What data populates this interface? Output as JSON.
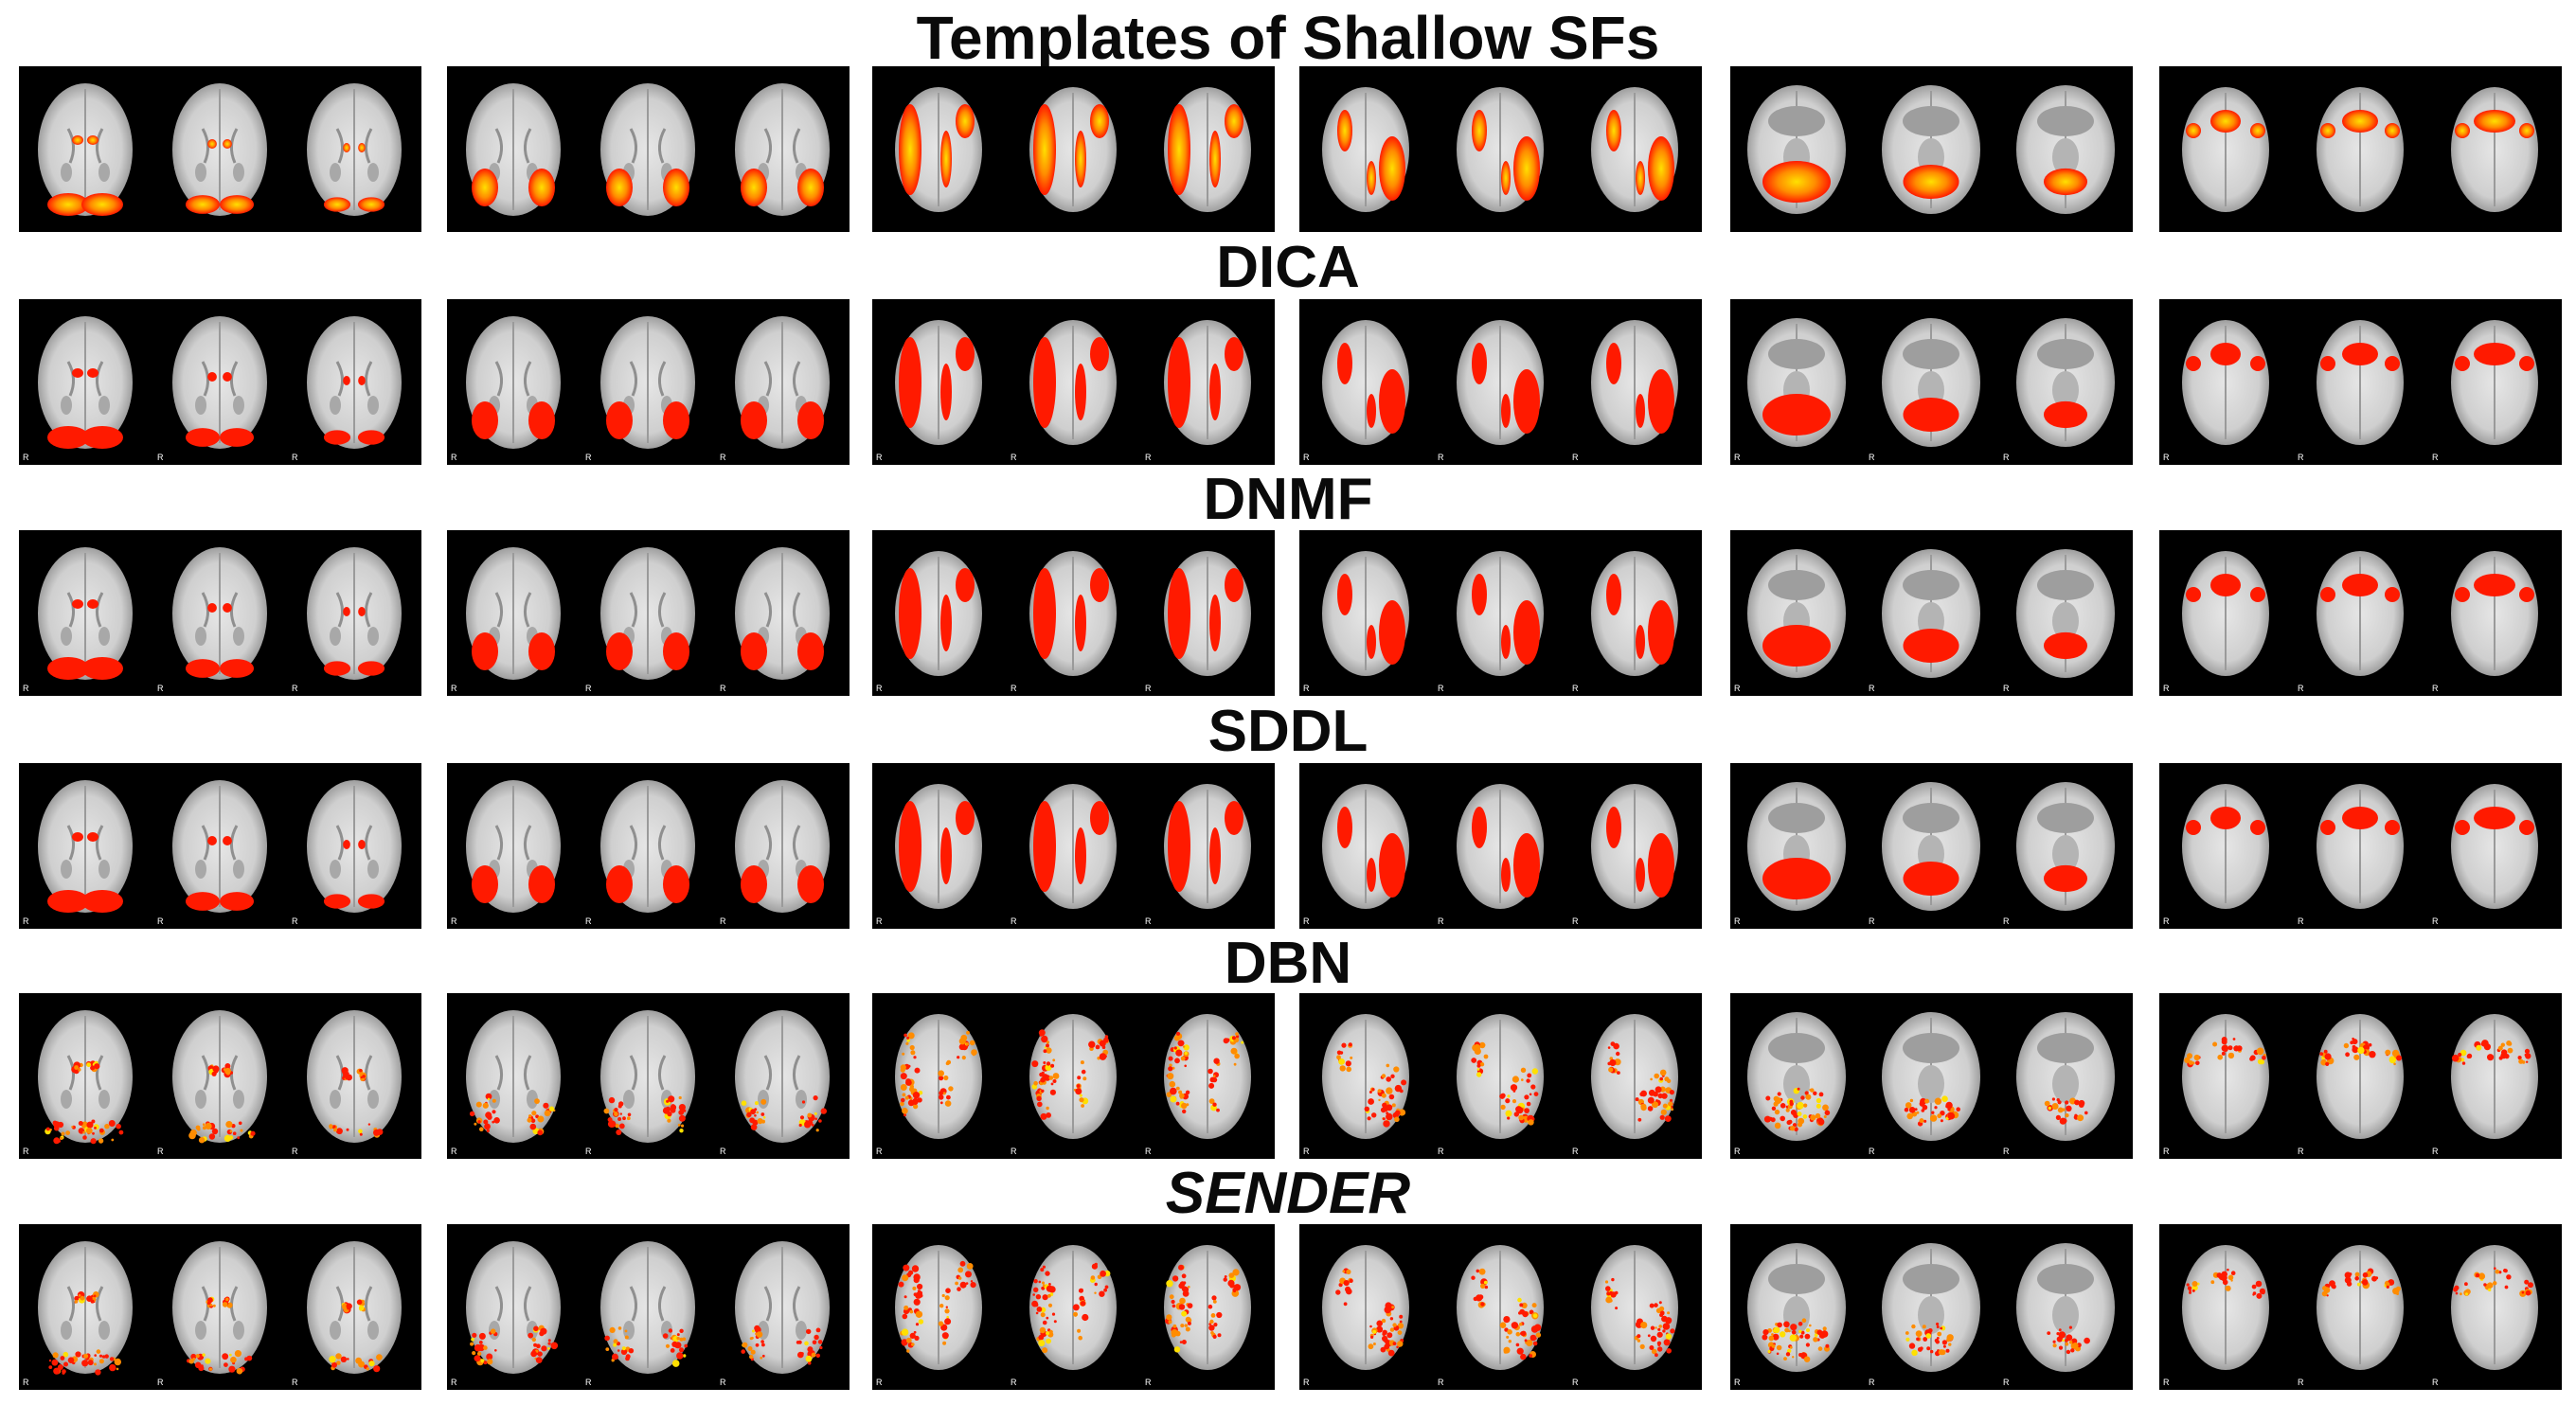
{
  "figure": {
    "rows": [
      {
        "title": "Templates of Shallow SFs",
        "italic": false,
        "style": "heat"
      },
      {
        "title": "DICA",
        "italic": false,
        "style": "red"
      },
      {
        "title": "DNMF",
        "italic": false,
        "style": "red"
      },
      {
        "title": "SDDL",
        "italic": false,
        "style": "red"
      },
      {
        "title": "DBN",
        "italic": false,
        "style": "speckle"
      },
      {
        "title": "SENDER",
        "italic": true,
        "style": "speckle"
      }
    ],
    "panel_types": [
      "occipital-visual",
      "lateral-occipital",
      "lateral-frontoparietal-left",
      "lateral-frontoparietal-right",
      "cerebellar",
      "frontal-medial"
    ],
    "slice_marker": "R",
    "colors": {
      "background": "#000000",
      "brain": "#c8c8c8",
      "activation_red": "#ff1a00",
      "activation_orange": "#ff8c00",
      "activation_yellow": "#ffe000"
    }
  }
}
